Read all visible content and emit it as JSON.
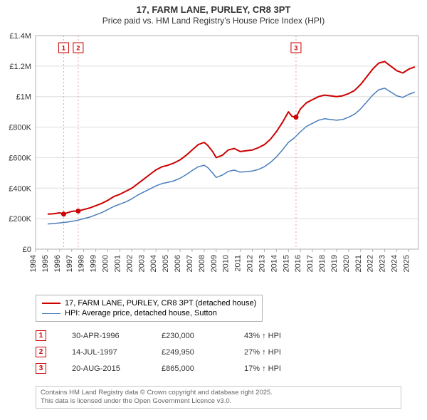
{
  "title_line1": "17, FARM LANE, PURLEY, CR8 3PT",
  "title_line2": "Price paid vs. HM Land Registry's House Price Index (HPI)",
  "chart": {
    "type": "line",
    "background_color": "#ffffff",
    "plot_bg_color": "#ffffff",
    "grid_color": "#dddddd",
    "axis_color": "#b0b0b0",
    "label_color": "#333333",
    "tick_fontsize": 11,
    "x_start": 1994,
    "x_end": 2025.8,
    "x_ticks": [
      1994,
      1995,
      1996,
      1997,
      1998,
      1999,
      2000,
      2001,
      2002,
      2003,
      2004,
      2005,
      2006,
      2007,
      2008,
      2009,
      2010,
      2011,
      2012,
      2013,
      2014,
      2015,
      2016,
      2017,
      2018,
      2019,
      2020,
      2021,
      2022,
      2023,
      2024,
      2025
    ],
    "y_min": 0,
    "y_max": 1400000,
    "y_ticks": [
      0,
      200000,
      400000,
      600000,
      800000,
      1000000,
      1200000,
      1400000
    ],
    "y_tick_labels": [
      "£0",
      "£200K",
      "£400K",
      "£600K",
      "£800K",
      "£1M",
      "£1.2M",
      "£1.4M"
    ],
    "series": [
      {
        "name": "17, FARM LANE, PURLEY, CR8 3PT (detached house)",
        "color": "#cc0000",
        "width": 2,
        "data": [
          [
            1995.0,
            230000
          ],
          [
            1995.5,
            232000
          ],
          [
            1996.0,
            238000
          ],
          [
            1996.33,
            230000
          ],
          [
            1996.7,
            240000
          ],
          [
            1997.0,
            248000
          ],
          [
            1997.54,
            249950
          ],
          [
            1998.0,
            260000
          ],
          [
            1998.5,
            270000
          ],
          [
            1999.0,
            285000
          ],
          [
            1999.5,
            300000
          ],
          [
            2000.0,
            320000
          ],
          [
            2000.5,
            345000
          ],
          [
            2001.0,
            360000
          ],
          [
            2001.5,
            380000
          ],
          [
            2002.0,
            400000
          ],
          [
            2002.5,
            430000
          ],
          [
            2003.0,
            460000
          ],
          [
            2003.5,
            490000
          ],
          [
            2004.0,
            520000
          ],
          [
            2004.5,
            540000
          ],
          [
            2005.0,
            550000
          ],
          [
            2005.5,
            565000
          ],
          [
            2006.0,
            585000
          ],
          [
            2006.5,
            615000
          ],
          [
            2007.0,
            650000
          ],
          [
            2007.5,
            685000
          ],
          [
            2008.0,
            700000
          ],
          [
            2008.3,
            680000
          ],
          [
            2008.7,
            640000
          ],
          [
            2009.0,
            600000
          ],
          [
            2009.5,
            615000
          ],
          [
            2010.0,
            650000
          ],
          [
            2010.5,
            660000
          ],
          [
            2011.0,
            640000
          ],
          [
            2011.5,
            645000
          ],
          [
            2012.0,
            650000
          ],
          [
            2012.5,
            665000
          ],
          [
            2013.0,
            685000
          ],
          [
            2013.5,
            720000
          ],
          [
            2014.0,
            770000
          ],
          [
            2014.5,
            830000
          ],
          [
            2015.0,
            900000
          ],
          [
            2015.3,
            870000
          ],
          [
            2015.63,
            865000
          ],
          [
            2016.0,
            920000
          ],
          [
            2016.5,
            960000
          ],
          [
            2017.0,
            980000
          ],
          [
            2017.5,
            1000000
          ],
          [
            2018.0,
            1010000
          ],
          [
            2018.5,
            1005000
          ],
          [
            2019.0,
            1000000
          ],
          [
            2019.5,
            1005000
          ],
          [
            2020.0,
            1020000
          ],
          [
            2020.5,
            1040000
          ],
          [
            2021.0,
            1080000
          ],
          [
            2021.5,
            1130000
          ],
          [
            2022.0,
            1180000
          ],
          [
            2022.5,
            1220000
          ],
          [
            2023.0,
            1230000
          ],
          [
            2023.5,
            1200000
          ],
          [
            2024.0,
            1170000
          ],
          [
            2024.5,
            1155000
          ],
          [
            2025.0,
            1180000
          ],
          [
            2025.5,
            1195000
          ]
        ]
      },
      {
        "name": "HPI: Average price, detached house, Sutton",
        "color": "#4a7ebb",
        "width": 1.5,
        "data": [
          [
            1995.0,
            165000
          ],
          [
            1995.5,
            168000
          ],
          [
            1996.0,
            172000
          ],
          [
            1996.5,
            176000
          ],
          [
            1997.0,
            182000
          ],
          [
            1997.5,
            190000
          ],
          [
            1998.0,
            200000
          ],
          [
            1998.5,
            210000
          ],
          [
            1999.0,
            225000
          ],
          [
            1999.5,
            240000
          ],
          [
            2000.0,
            260000
          ],
          [
            2000.5,
            280000
          ],
          [
            2001.0,
            295000
          ],
          [
            2001.5,
            310000
          ],
          [
            2002.0,
            330000
          ],
          [
            2002.5,
            355000
          ],
          [
            2003.0,
            375000
          ],
          [
            2003.5,
            395000
          ],
          [
            2004.0,
            415000
          ],
          [
            2004.5,
            430000
          ],
          [
            2005.0,
            438000
          ],
          [
            2005.5,
            448000
          ],
          [
            2006.0,
            465000
          ],
          [
            2006.5,
            488000
          ],
          [
            2007.0,
            515000
          ],
          [
            2007.5,
            540000
          ],
          [
            2008.0,
            550000
          ],
          [
            2008.3,
            535000
          ],
          [
            2008.7,
            500000
          ],
          [
            2009.0,
            470000
          ],
          [
            2009.5,
            485000
          ],
          [
            2010.0,
            510000
          ],
          [
            2010.5,
            518000
          ],
          [
            2011.0,
            505000
          ],
          [
            2011.5,
            508000
          ],
          [
            2012.0,
            512000
          ],
          [
            2012.5,
            522000
          ],
          [
            2013.0,
            540000
          ],
          [
            2013.5,
            568000
          ],
          [
            2014.0,
            605000
          ],
          [
            2014.5,
            650000
          ],
          [
            2015.0,
            700000
          ],
          [
            2015.5,
            730000
          ],
          [
            2016.0,
            770000
          ],
          [
            2016.5,
            805000
          ],
          [
            2017.0,
            825000
          ],
          [
            2017.5,
            845000
          ],
          [
            2018.0,
            855000
          ],
          [
            2018.5,
            850000
          ],
          [
            2019.0,
            845000
          ],
          [
            2019.5,
            850000
          ],
          [
            2020.0,
            865000
          ],
          [
            2020.5,
            885000
          ],
          [
            2021.0,
            920000
          ],
          [
            2021.5,
            965000
          ],
          [
            2022.0,
            1010000
          ],
          [
            2022.5,
            1045000
          ],
          [
            2023.0,
            1055000
          ],
          [
            2023.5,
            1030000
          ],
          [
            2024.0,
            1005000
          ],
          [
            2024.5,
            995000
          ],
          [
            2025.0,
            1015000
          ],
          [
            2025.5,
            1030000
          ]
        ]
      }
    ],
    "sale_markers": [
      {
        "n": "1",
        "x": 1996.33,
        "y": 230000,
        "vline_color": "#e8a0a0"
      },
      {
        "n": "2",
        "x": 1997.54,
        "y": 249950,
        "vline_color": "#e8a0a0"
      },
      {
        "n": "3",
        "x": 2015.63,
        "y": 865000,
        "vline_color": "#e8a0a0"
      }
    ],
    "marker_border": "#cc0000",
    "marker_text_color": "#cc0000",
    "sale_dot_color": "#cc0000",
    "sale_dot_radius": 3.5,
    "marker_top_offset": 10
  },
  "legend": {
    "items": [
      {
        "label": "17, FARM LANE, PURLEY, CR8 3PT (detached house)",
        "color": "#cc0000",
        "width": 2
      },
      {
        "label": "HPI: Average price, detached house, Sutton",
        "color": "#4a7ebb",
        "width": 1.5
      }
    ]
  },
  "sales": [
    {
      "n": "1",
      "date": "30-APR-1996",
      "price": "£230,000",
      "pct": "43% ↑ HPI"
    },
    {
      "n": "2",
      "date": "14-JUL-1997",
      "price": "£249,950",
      "pct": "27% ↑ HPI"
    },
    {
      "n": "3",
      "date": "20-AUG-2015",
      "price": "£865,000",
      "pct": "17% ↑ HPI"
    }
  ],
  "footer_line1": "Contains HM Land Registry data © Crown copyright and database right 2025.",
  "footer_line2": "This data is licensed under the Open Government Licence v3.0."
}
